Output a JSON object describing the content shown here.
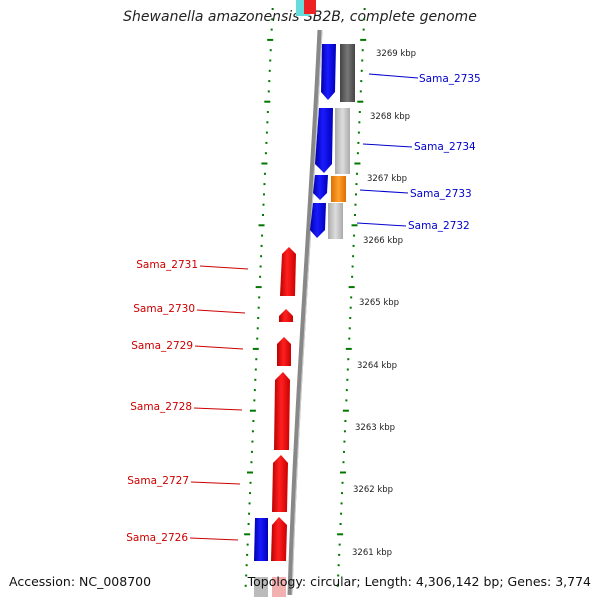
{
  "title": "Shewanella amazonensis SB2B, complete genome",
  "footer": {
    "accession": "Accession: NC_008700",
    "topology": "Topology: circular; Length: 4,306,142 bp; Genes: 3,774"
  },
  "scale_labels": [
    "3269 kbp",
    "3268 kbp",
    "3267 kbp",
    "3266 kbp",
    "3265 kbp",
    "3264 kbp",
    "3263 kbp",
    "3262 kbp",
    "3261 kbp"
  ],
  "colors": {
    "forward_label": "#0000cc",
    "reverse_label": "#cc0000",
    "cds_forward": "#0000ee",
    "cds_reverse": "#ee0000",
    "cog_dark_gray": "#555555",
    "cog_light_gray": "#bbbbbb",
    "cog_orange": "#ff8c00",
    "backbone": "#888888",
    "tick": "#007700"
  },
  "genes": [
    {
      "name": "Sama_2735",
      "strand": "forward",
      "cog_color": "dark-gray"
    },
    {
      "name": "Sama_2734",
      "strand": "forward",
      "cog_color": "light-gray"
    },
    {
      "name": "Sama_2733",
      "strand": "forward",
      "cog_color": "orange"
    },
    {
      "name": "Sama_2732",
      "strand": "forward",
      "cog_color": "light-gray"
    },
    {
      "name": "Sama_2731",
      "strand": "reverse"
    },
    {
      "name": "Sama_2730",
      "strand": "reverse"
    },
    {
      "name": "Sama_2729",
      "strand": "reverse"
    },
    {
      "name": "Sama_2728",
      "strand": "reverse"
    },
    {
      "name": "Sama_2727",
      "strand": "reverse"
    },
    {
      "name": "Sama_2726",
      "strand": "reverse"
    }
  ]
}
